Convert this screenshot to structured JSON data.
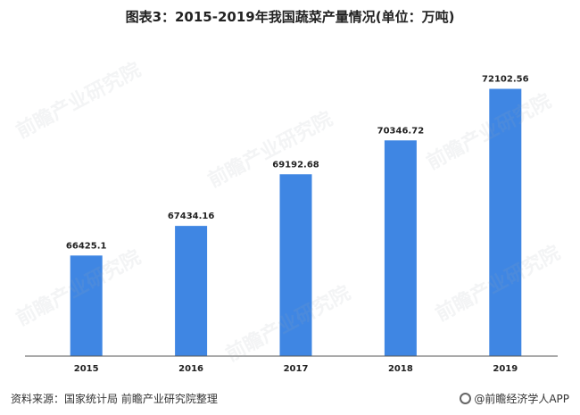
{
  "title": "图表3：2015-2019年我国蔬菜产量情况(单位：万吨)",
  "source": "资料来源：国家统计局 前瞻产业研究院整理",
  "brand": "@前瞻经济学人APP",
  "watermark": "前瞻产业研究院",
  "colors": {
    "bar": "#3f86e3",
    "axis": "#555555"
  },
  "chart_data": {
    "type": "bar",
    "title": "图表3：2015-2019年我国蔬菜产量情况(单位：万吨)",
    "categories": [
      "2015",
      "2016",
      "2017",
      "2018",
      "2019"
    ],
    "values": [
      66425.1,
      67434.16,
      69192.68,
      70346.72,
      72102.56
    ],
    "data_labels": [
      "66425.1",
      "67434.16",
      "69192.68",
      "70346.72",
      "72102.56"
    ],
    "xlabel": "",
    "ylabel": "",
    "ylim": [
      63000,
      73000
    ],
    "grid": false,
    "legend": "none"
  }
}
